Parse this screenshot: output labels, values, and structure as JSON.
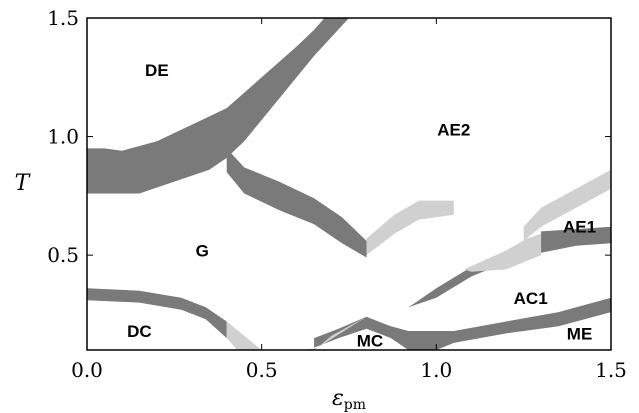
{
  "chart_data": {
    "type": "area",
    "title": "",
    "xlabel_main": "ε",
    "xlabel_sub": "pm",
    "ylabel": "T",
    "xlim": [
      0.0,
      1.5
    ],
    "ylim": [
      0.1,
      1.5
    ],
    "xticks": [
      0.0,
      0.5,
      1.0,
      1.5
    ],
    "xtick_labels": [
      "0.0",
      "0.5",
      "1.0",
      "1.5"
    ],
    "yticks": [
      0.5,
      1.0,
      1.5
    ],
    "ytick_labels": [
      "0.5",
      "1.0",
      "1.5"
    ],
    "grid": false,
    "colors": {
      "dark_band": "#7a7a7a",
      "light_band": "#d0d0d0",
      "frame": "#000000"
    },
    "region_labels": [
      {
        "text": "DE",
        "x": 0.2,
        "y": 1.28
      },
      {
        "text": "AE2",
        "x": 1.05,
        "y": 1.03
      },
      {
        "text": "G",
        "x": 0.33,
        "y": 0.52
      },
      {
        "text": "AE1",
        "x": 1.41,
        "y": 0.62
      },
      {
        "text": "AC1",
        "x": 1.27,
        "y": 0.32
      },
      {
        "text": "DC",
        "x": 0.15,
        "y": 0.18
      },
      {
        "text": "MC",
        "x": 0.81,
        "y": 0.14
      },
      {
        "text": "ME",
        "x": 1.41,
        "y": 0.17
      }
    ],
    "bands": [
      {
        "shade": "dark",
        "upper": [
          [
            0.0,
            0.95
          ],
          [
            0.05,
            0.95
          ],
          [
            0.1,
            0.94
          ],
          [
            0.2,
            0.98
          ],
          [
            0.3,
            1.05
          ],
          [
            0.4,
            1.12
          ],
          [
            0.5,
            1.25
          ],
          [
            0.6,
            1.38
          ],
          [
            0.65,
            1.45
          ],
          [
            0.68,
            1.5
          ]
        ],
        "lower": [
          [
            0.0,
            0.76
          ],
          [
            0.05,
            0.76
          ],
          [
            0.15,
            0.76
          ],
          [
            0.25,
            0.81
          ],
          [
            0.35,
            0.86
          ],
          [
            0.4,
            0.91
          ],
          [
            0.45,
            0.98
          ],
          [
            0.55,
            1.16
          ],
          [
            0.65,
            1.34
          ],
          [
            0.75,
            1.5
          ]
        ]
      },
      {
        "shade": "dark",
        "upper": [
          [
            0.4,
            0.95
          ],
          [
            0.45,
            0.87
          ],
          [
            0.55,
            0.81
          ],
          [
            0.65,
            0.74
          ],
          [
            0.73,
            0.66
          ],
          [
            0.8,
            0.56
          ]
        ],
        "lower": [
          [
            0.4,
            0.85
          ],
          [
            0.45,
            0.76
          ],
          [
            0.55,
            0.69
          ],
          [
            0.65,
            0.63
          ],
          [
            0.73,
            0.55
          ],
          [
            0.8,
            0.49
          ]
        ]
      },
      {
        "shade": "light",
        "upper": [
          [
            0.8,
            0.57
          ],
          [
            0.88,
            0.67
          ],
          [
            0.95,
            0.73
          ],
          [
            1.05,
            0.73
          ]
        ],
        "lower": [
          [
            0.8,
            0.5
          ],
          [
            0.88,
            0.59
          ],
          [
            0.95,
            0.65
          ],
          [
            1.05,
            0.67
          ]
        ]
      },
      {
        "shade": "dark",
        "upper": [
          [
            0.0,
            0.36
          ],
          [
            0.15,
            0.35
          ],
          [
            0.27,
            0.32
          ],
          [
            0.34,
            0.28
          ],
          [
            0.4,
            0.22
          ]
        ],
        "lower": [
          [
            0.0,
            0.31
          ],
          [
            0.15,
            0.3
          ],
          [
            0.27,
            0.27
          ],
          [
            0.34,
            0.23
          ],
          [
            0.4,
            0.15
          ]
        ]
      },
      {
        "shade": "light",
        "upper": [
          [
            0.4,
            0.22
          ],
          [
            0.45,
            0.16
          ],
          [
            0.5,
            0.1
          ]
        ],
        "lower": [
          [
            0.4,
            0.15
          ],
          [
            0.43,
            0.1
          ]
        ]
      },
      {
        "shade": "dark",
        "upper": [
          [
            0.65,
            0.15
          ],
          [
            0.72,
            0.19
          ],
          [
            0.8,
            0.24
          ],
          [
            0.87,
            0.2
          ],
          [
            0.92,
            0.18
          ],
          [
            1.0,
            0.18
          ],
          [
            1.05,
            0.18
          ],
          [
            1.2,
            0.22
          ],
          [
            1.35,
            0.26
          ],
          [
            1.5,
            0.32
          ]
        ],
        "lower": [
          [
            0.65,
            0.11
          ],
          [
            0.72,
            0.15
          ],
          [
            0.8,
            0.19
          ],
          [
            0.87,
            0.15
          ],
          [
            0.92,
            0.1
          ],
          [
            1.0,
            0.1
          ],
          [
            1.05,
            0.13
          ],
          [
            1.2,
            0.17
          ],
          [
            1.35,
            0.2
          ],
          [
            1.5,
            0.26
          ]
        ]
      },
      {
        "shade": "light",
        "upper": [
          [
            0.62,
            0.1
          ],
          [
            0.66,
            0.11
          ],
          [
            0.7,
            0.16
          ],
          [
            0.8,
            0.24
          ]
        ],
        "lower": [
          [
            0.6,
            0.1
          ],
          [
            0.65,
            0.1
          ]
        ]
      },
      {
        "shade": "dark",
        "upper": [
          [
            0.94,
            0.3
          ],
          [
            1.0,
            0.36
          ],
          [
            1.1,
            0.45
          ],
          [
            1.2,
            0.51
          ],
          [
            1.26,
            0.57
          ]
        ],
        "lower": [
          [
            0.92,
            0.28
          ],
          [
            1.0,
            0.32
          ],
          [
            1.1,
            0.41
          ],
          [
            1.2,
            0.47
          ],
          [
            1.26,
            0.53
          ]
        ]
      },
      {
        "shade": "light",
        "upper": [
          [
            1.08,
            0.44
          ],
          [
            1.2,
            0.52
          ],
          [
            1.26,
            0.57
          ],
          [
            1.3,
            0.59
          ]
        ],
        "lower": [
          [
            1.1,
            0.43
          ],
          [
            1.2,
            0.44
          ],
          [
            1.3,
            0.5
          ]
        ]
      },
      {
        "shade": "dark",
        "upper": [
          [
            1.3,
            0.6
          ],
          [
            1.4,
            0.61
          ],
          [
            1.5,
            0.62
          ]
        ],
        "lower": [
          [
            1.3,
            0.51
          ],
          [
            1.4,
            0.54
          ],
          [
            1.5,
            0.55
          ]
        ]
      },
      {
        "shade": "light",
        "upper": [
          [
            1.25,
            0.62
          ],
          [
            1.3,
            0.7
          ],
          [
            1.4,
            0.78
          ],
          [
            1.5,
            0.86
          ]
        ],
        "lower": [
          [
            1.25,
            0.56
          ],
          [
            1.3,
            0.62
          ],
          [
            1.4,
            0.7
          ],
          [
            1.5,
            0.78
          ]
        ]
      }
    ]
  }
}
